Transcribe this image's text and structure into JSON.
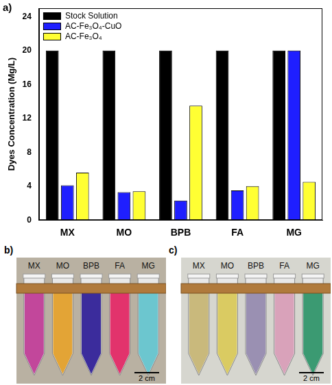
{
  "chart_data": {
    "type": "bar",
    "title": "a)",
    "categories": [
      "MX",
      "MO",
      "BPB",
      "FA",
      "MG"
    ],
    "series": [
      {
        "name": "Stock Solution",
        "color": "#000000",
        "values": [
          20,
          20,
          20,
          20,
          20
        ]
      },
      {
        "name": "AC-Fe₃O₄-CuO",
        "color": "#1f1fff",
        "values": [
          4.1,
          3.3,
          2.3,
          3.5,
          20.0
        ]
      },
      {
        "name": "AC-Fe₃O₄",
        "color": "#ffff33",
        "values": [
          5.6,
          3.4,
          13.5,
          4.0,
          4.5
        ]
      }
    ],
    "y_label": "Dyes Concentration (Mg/L)",
    "ylim": [
      0,
      25
    ],
    "yticks": [
      0,
      4,
      8,
      12,
      16,
      20,
      24
    ],
    "grid": false,
    "legend": "upper left"
  },
  "photos": [
    {
      "label": "b)",
      "scale_bar": "2 cm",
      "tubes": [
        {
          "label": "MX",
          "color": "#c2479b"
        },
        {
          "label": "MO",
          "color": "#e3a436"
        },
        {
          "label": "BPB",
          "color": "#3b2c9c"
        },
        {
          "label": "FA",
          "color": "#e2336c"
        },
        {
          "label": "MG",
          "color": "#6cc6cf"
        }
      ]
    },
    {
      "label": "c)",
      "scale_bar": "2 cm",
      "tubes": [
        {
          "label": "MX",
          "color": "#c9b97c"
        },
        {
          "label": "MO",
          "color": "#dacb62"
        },
        {
          "label": "BPB",
          "color": "#9a90b2"
        },
        {
          "label": "FA",
          "color": "#d9a2ba"
        },
        {
          "label": "MG",
          "color": "#3b9a72"
        }
      ]
    }
  ]
}
